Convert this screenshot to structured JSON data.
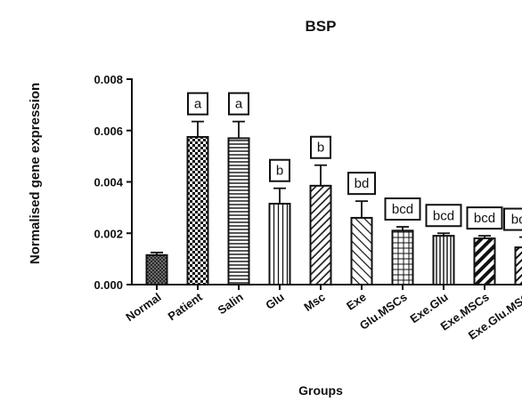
{
  "chart_data": {
    "type": "bar",
    "title": "BSP",
    "xlabel": "Groups",
    "ylabel": "Normalised gene expression",
    "ylim": [
      0,
      0.008
    ],
    "yticks": [
      "0.000",
      "0.002",
      "0.004",
      "0.006",
      "0.008"
    ],
    "categories": [
      "Normal",
      "Patient",
      "Salin",
      "Glu",
      "Msc",
      "Exe",
      "Glu.MSCs",
      "Exe.Glu",
      "Exe.MSCs",
      "Exe.Glu.MSC"
    ],
    "values": [
      0.00115,
      0.00575,
      0.0057,
      0.00315,
      0.00385,
      0.0026,
      0.0021,
      0.0019,
      0.0018,
      0.00145
    ],
    "errors": [
      0.0001,
      0.0006,
      0.00065,
      0.0006,
      0.0008,
      0.00065,
      0.00015,
      0.0001,
      0.0001,
      0.0004
    ],
    "significance": [
      "",
      "a",
      "a",
      "b",
      "b",
      "bd",
      "bcd",
      "bcd",
      "bcd",
      "bcde"
    ],
    "patterns": [
      "crosshatch-dense",
      "checker",
      "horizontal",
      "vertical",
      "diagonal-left",
      "diagonal-right",
      "grid",
      "vertical-dense",
      "diagonal-thick",
      "diagonal-thin"
    ],
    "grid": false,
    "legend": "none"
  }
}
